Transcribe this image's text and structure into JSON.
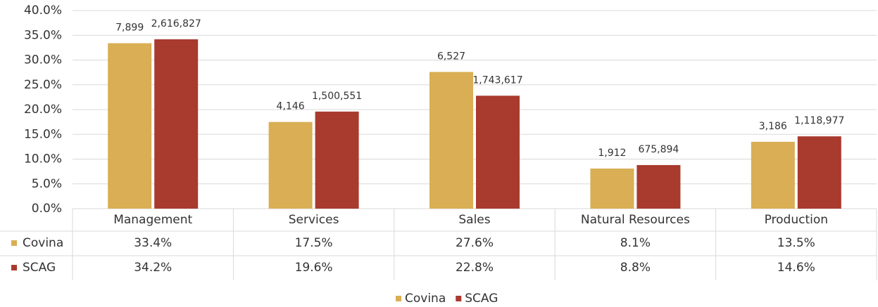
{
  "chart_data": {
    "type": "bar",
    "categories": [
      "Management",
      "Services",
      "Sales",
      "Natural Resources",
      "Production"
    ],
    "series": [
      {
        "name": "Covina",
        "color": "#d9ae54",
        "values": [
          33.4,
          17.5,
          27.6,
          8.1,
          13.5
        ],
        "value_labels": [
          "33.4%",
          "17.5%",
          "27.6%",
          "8.1%",
          "13.5%"
        ],
        "data_labels": [
          "7,899",
          "4,146",
          "6,527",
          "1,912",
          "3,186"
        ]
      },
      {
        "name": "SCAG",
        "color": "#a93a2e",
        "values": [
          34.2,
          19.6,
          22.8,
          8.8,
          14.6
        ],
        "value_labels": [
          "34.2%",
          "19.6%",
          "22.8%",
          "8.8%",
          "14.6%"
        ],
        "data_labels": [
          "2,616,827",
          "1,500,551",
          "1,743,617",
          "675,894",
          "1,118,977"
        ]
      }
    ],
    "ylim": [
      0,
      40
    ],
    "yticks": [
      {
        "value": 0,
        "label": "0.0%"
      },
      {
        "value": 5,
        "label": "5.0%"
      },
      {
        "value": 10,
        "label": "10.0%"
      },
      {
        "value": 15,
        "label": "15.0%"
      },
      {
        "value": 20,
        "label": "20.0%"
      },
      {
        "value": 25,
        "label": "25.0%"
      },
      {
        "value": 30,
        "label": "30.0%"
      },
      {
        "value": 35,
        "label": "35.0%"
      },
      {
        "value": 40,
        "label": "40.0%"
      }
    ],
    "grid": true,
    "legend": "bottom"
  }
}
